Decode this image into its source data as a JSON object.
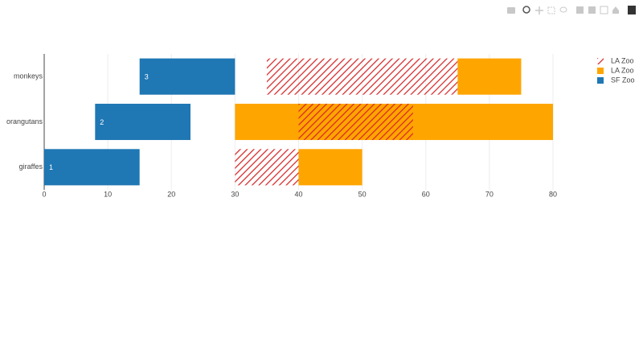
{
  "chart_data": {
    "type": "bar",
    "orientation": "h",
    "categories": [
      "giraffes",
      "orangutans",
      "monkeys"
    ],
    "series": [
      {
        "name": "SF Zoo",
        "color": "#1f77b4",
        "values": [
          15,
          15,
          15
        ],
        "bases": [
          0,
          8,
          15
        ],
        "text": [
          "1",
          "2",
          "3"
        ]
      },
      {
        "name": "LA Zoo",
        "color": "#ffa500",
        "values": [
          10,
          50,
          10
        ],
        "bases": [
          40,
          30,
          65
        ]
      },
      {
        "name": "LA Zoo",
        "color": "#d62728",
        "pattern": "/",
        "values": [
          10,
          18,
          30
        ],
        "bases": [
          30,
          40,
          35
        ]
      }
    ],
    "xlim": [
      0,
      80
    ],
    "xticks": [
      0,
      10,
      20,
      30,
      40,
      50,
      60,
      70,
      80
    ],
    "grid": true,
    "legend": "top-right"
  }
}
